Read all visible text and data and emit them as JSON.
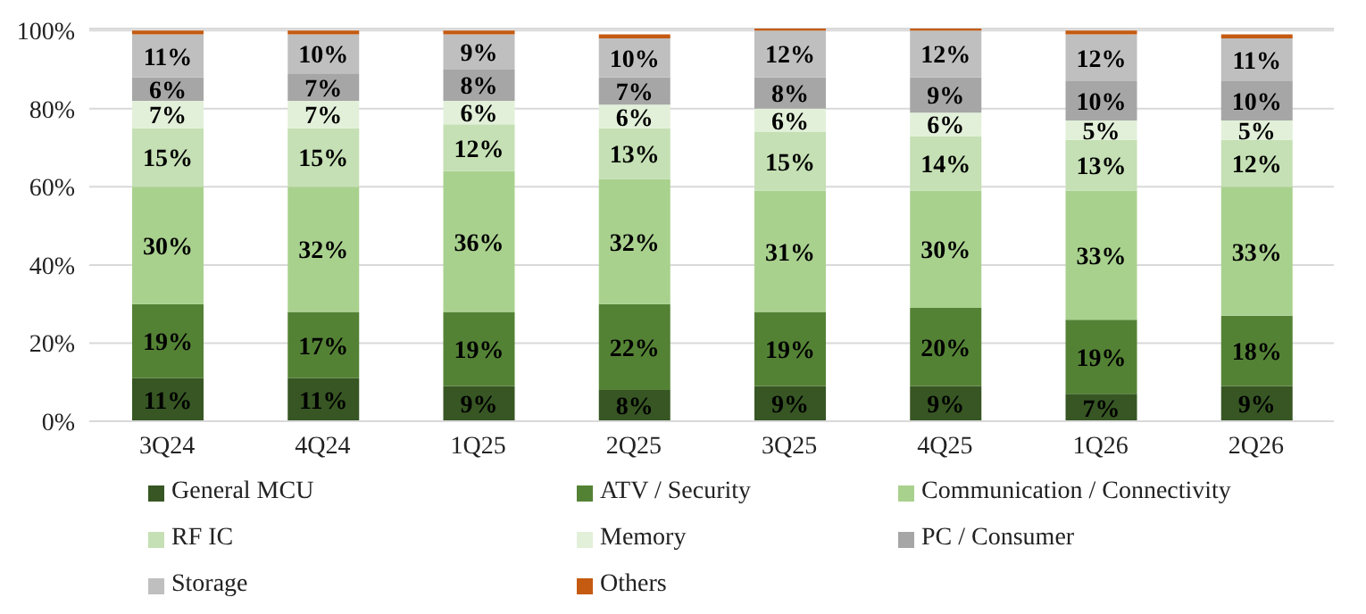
{
  "chart_data": {
    "type": "bar",
    "stacked": true,
    "categories": [
      "3Q24",
      "4Q24",
      "1Q25",
      "2Q25",
      "3Q25",
      "4Q25",
      "1Q26",
      "2Q26"
    ],
    "series": [
      {
        "name": "General MCU",
        "color": "#375623",
        "values": [
          11,
          11,
          9,
          8,
          9,
          9,
          7,
          9
        ],
        "value_labels": [
          "11%",
          "11%",
          "9%",
          "8%",
          "9%",
          "9%",
          "7%",
          "9%"
        ]
      },
      {
        "name": "ATV / Security",
        "color": "#548235",
        "values": [
          19,
          17,
          19,
          22,
          19,
          20,
          19,
          18
        ],
        "value_labels": [
          "19%",
          "17%",
          "19%",
          "22%",
          "19%",
          "20%",
          "19%",
          "18%"
        ]
      },
      {
        "name": "Communication / Connectivity",
        "color": "#a9d18e",
        "values": [
          30,
          32,
          36,
          32,
          31,
          30,
          33,
          33
        ],
        "value_labels": [
          "30%",
          "32%",
          "36%",
          "32%",
          "31%",
          "30%",
          "33%",
          "33%"
        ]
      },
      {
        "name": "RF IC",
        "color": "#c5e0b4",
        "values": [
          15,
          15,
          12,
          13,
          15,
          14,
          13,
          12
        ],
        "value_labels": [
          "15%",
          "15%",
          "12%",
          "13%",
          "15%",
          "14%",
          "13%",
          "12%"
        ]
      },
      {
        "name": "Memory",
        "color": "#e2f0d9",
        "values": [
          7,
          7,
          6,
          6,
          6,
          6,
          5,
          5
        ],
        "value_labels": [
          "7%",
          "7%",
          "6%",
          "6%",
          "6%",
          "6%",
          "5%",
          "5%"
        ]
      },
      {
        "name": "PC / Consumer",
        "color": "#a6a6a6",
        "values": [
          6,
          7,
          8,
          7,
          8,
          9,
          10,
          10
        ],
        "value_labels": [
          "6%",
          "7%",
          "8%",
          "7%",
          "8%",
          "9%",
          "10%",
          "10%"
        ]
      },
      {
        "name": "Storage",
        "color": "#bfbfbf",
        "values": [
          11,
          10,
          9,
          10,
          12,
          12,
          12,
          11
        ],
        "value_labels": [
          "11%",
          "10%",
          "9%",
          "10%",
          "12%",
          "12%",
          "12%",
          "11%"
        ]
      },
      {
        "name": "Others",
        "color": "#c55a11",
        "values": [
          1,
          1,
          1,
          1,
          0.5,
          0.5,
          1,
          1
        ]
      }
    ],
    "ylim": [
      0,
      100.5
    ],
    "yticks": [
      {
        "value": 0,
        "label": "0%"
      },
      {
        "value": 20,
        "label": "20%"
      },
      {
        "value": 40,
        "label": "40%"
      },
      {
        "value": 60,
        "label": "60%"
      },
      {
        "value": 80,
        "label": "80%"
      },
      {
        "value": 100,
        "label": "100%"
      }
    ],
    "grid": "y",
    "legend": "bottom"
  }
}
